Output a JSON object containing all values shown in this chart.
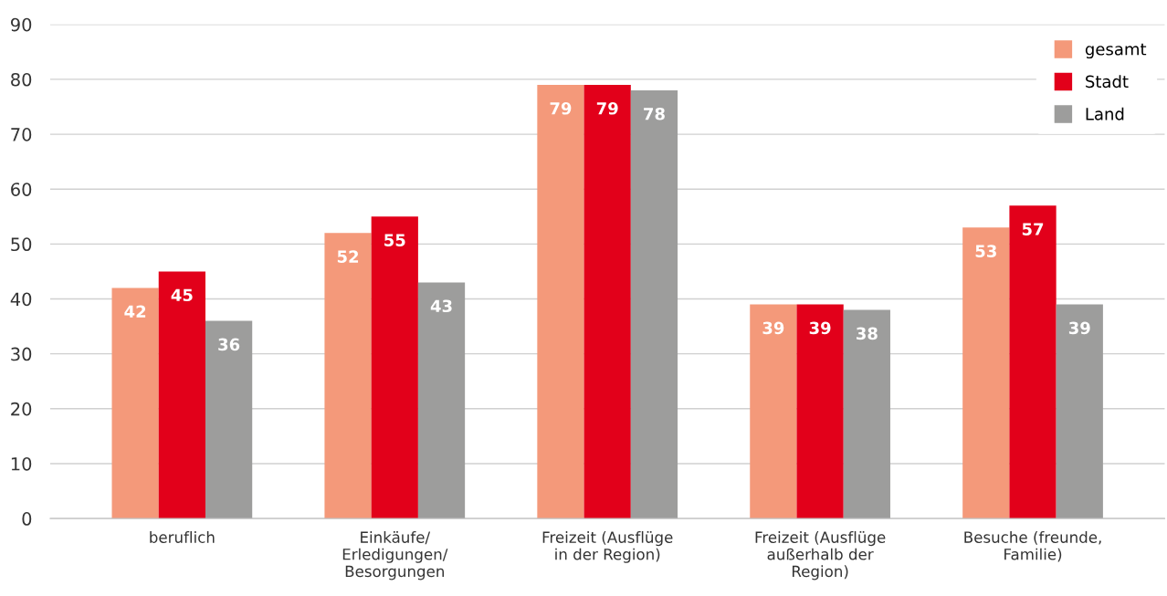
{
  "chart_data": {
    "type": "bar",
    "categories": [
      "beruflich",
      "Einkäufe/\nErledigungen/\nBesorgungen",
      "Freizeit (Ausflüge\nin der Region)",
      "Freizeit (Ausflüge\naußerhalb der\nRegion)",
      "Besuche (freunde,\nFamilie)"
    ],
    "series": [
      {
        "name": "gesamt",
        "color": "#f4997a",
        "values": [
          42,
          52,
          79,
          39,
          53
        ]
      },
      {
        "name": "Stadt",
        "color": "#e2001a",
        "values": [
          45,
          55,
          79,
          39,
          57
        ]
      },
      {
        "name": "Land",
        "color": "#9d9d9c",
        "values": [
          36,
          43,
          78,
          38,
          39
        ]
      }
    ],
    "ylim": [
      0,
      90
    ],
    "yticks": [
      0,
      10,
      20,
      30,
      40,
      50,
      60,
      70,
      80,
      90
    ],
    "grid": "y",
    "legend": "top right",
    "data_labels": true
  }
}
